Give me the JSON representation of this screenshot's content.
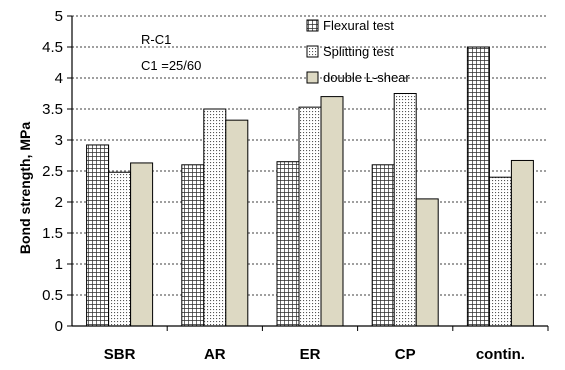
{
  "chart_data": {
    "type": "bar",
    "categories": [
      "SBR",
      "AR",
      "ER",
      "CP",
      "contin."
    ],
    "series": [
      {
        "name": "Flexural test",
        "values": [
          2.92,
          2.6,
          2.65,
          2.6,
          4.5
        ],
        "pattern": "grid",
        "color": "#2b2b2b"
      },
      {
        "name": "Splitting test",
        "values": [
          2.48,
          3.5,
          3.53,
          3.75,
          2.4
        ],
        "pattern": "dots",
        "color": "#555555"
      },
      {
        "name": "double L-shear",
        "values": [
          2.63,
          3.32,
          3.7,
          2.05,
          2.67
        ],
        "pattern": "solid",
        "color": "#ddd9c3"
      }
    ],
    "ylabel": "Bond strength, MPa",
    "xlabel": "",
    "ylim": [
      0,
      5
    ],
    "yticks": [
      "0",
      "0.5",
      "1",
      "1.5",
      "2",
      "2.5",
      "3",
      "3.5",
      "4",
      "4.5",
      "5"
    ],
    "grid": true,
    "legend_position": "top-center",
    "annotations": [
      "R-C1",
      "C1 =25/60"
    ]
  }
}
